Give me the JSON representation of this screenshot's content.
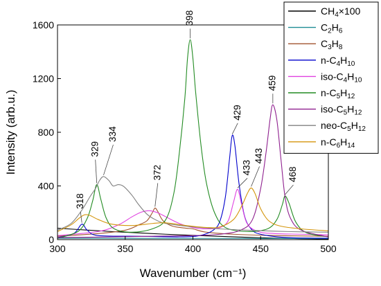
{
  "chart_data": {
    "type": "line",
    "xlabel": "Wavenumber (cm⁻¹)",
    "ylabel": "Intensity (arb.u.)",
    "xlim": [
      300,
      500
    ],
    "ylim": [
      0,
      1600
    ],
    "x_ticks": [
      300,
      350,
      400,
      450,
      500
    ],
    "y_ticks": [
      0,
      400,
      800,
      1200,
      1600
    ],
    "grid": false,
    "legend_position": "top-right",
    "series": [
      {
        "name": "CH4×100",
        "color": "#000000",
        "points": [
          [
            300,
            85
          ],
          [
            320,
            72
          ],
          [
            340,
            60
          ],
          [
            360,
            50
          ],
          [
            380,
            40
          ],
          [
            400,
            32
          ],
          [
            420,
            24
          ],
          [
            440,
            17
          ],
          [
            460,
            11
          ],
          [
            480,
            7
          ],
          [
            500,
            4
          ]
        ]
      },
      {
        "name": "C2H6",
        "color": "#1c8c94",
        "points": [
          [
            300,
            10
          ],
          [
            340,
            10
          ],
          [
            380,
            9
          ],
          [
            420,
            9
          ],
          [
            460,
            8
          ],
          [
            500,
            8
          ]
        ]
      },
      {
        "name": "C3H8",
        "color": "#a0522d",
        "points": [
          [
            300,
            25
          ],
          [
            330,
            45
          ],
          [
            350,
            70
          ],
          [
            360,
            110
          ],
          [
            366,
            140
          ],
          [
            370,
            200
          ],
          [
            372,
            235
          ],
          [
            374,
            210
          ],
          [
            378,
            140
          ],
          [
            385,
            100
          ],
          [
            395,
            85
          ],
          [
            400,
            80
          ],
          [
            410,
            55
          ],
          [
            430,
            40
          ],
          [
            460,
            30
          ],
          [
            500,
            25
          ]
        ]
      },
      {
        "name": "n-C4H10",
        "color": "#0000cc",
        "points": [
          [
            300,
            15
          ],
          [
            312,
            45
          ],
          [
            318,
            115
          ],
          [
            322,
            70
          ],
          [
            330,
            30
          ],
          [
            360,
            25
          ],
          [
            390,
            20
          ],
          [
            405,
            30
          ],
          [
            415,
            70
          ],
          [
            420,
            140
          ],
          [
            424,
            320
          ],
          [
            427,
            600
          ],
          [
            429,
            775
          ],
          [
            431,
            700
          ],
          [
            434,
            420
          ],
          [
            438,
            180
          ],
          [
            443,
            80
          ],
          [
            450,
            40
          ],
          [
            470,
            15
          ],
          [
            500,
            10
          ]
        ]
      },
      {
        "name": "iso-C4H10",
        "color": "#e040e0",
        "points": [
          [
            300,
            30
          ],
          [
            330,
            60
          ],
          [
            345,
            110
          ],
          [
            355,
            170
          ],
          [
            362,
            205
          ],
          [
            368,
            215
          ],
          [
            374,
            200
          ],
          [
            380,
            170
          ],
          [
            390,
            120
          ],
          [
            400,
            90
          ],
          [
            410,
            80
          ],
          [
            420,
            90
          ],
          [
            426,
            140
          ],
          [
            430,
            280
          ],
          [
            433,
            375
          ],
          [
            436,
            260
          ],
          [
            440,
            120
          ],
          [
            448,
            60
          ],
          [
            460,
            45
          ],
          [
            480,
            40
          ],
          [
            500,
            35
          ]
        ]
      },
      {
        "name": "n-C5H12",
        "color": "#228b22",
        "points": [
          [
            300,
            10
          ],
          [
            315,
            60
          ],
          [
            322,
            160
          ],
          [
            326,
            290
          ],
          [
            329,
            410
          ],
          [
            332,
            300
          ],
          [
            336,
            160
          ],
          [
            342,
            80
          ],
          [
            355,
            55
          ],
          [
            370,
            80
          ],
          [
            380,
            150
          ],
          [
            386,
            350
          ],
          [
            390,
            650
          ],
          [
            394,
            1050
          ],
          [
            396,
            1350
          ],
          [
            398,
            1490
          ],
          [
            400,
            1350
          ],
          [
            402,
            1100
          ],
          [
            406,
            700
          ],
          [
            410,
            420
          ],
          [
            416,
            200
          ],
          [
            424,
            90
          ],
          [
            440,
            60
          ],
          [
            455,
            80
          ],
          [
            462,
            150
          ],
          [
            466,
            260
          ],
          [
            468,
            325
          ],
          [
            471,
            270
          ],
          [
            476,
            130
          ],
          [
            484,
            50
          ],
          [
            500,
            20
          ]
        ]
      },
      {
        "name": "iso-C5H12",
        "color": "#8e1f8e",
        "points": [
          [
            300,
            15
          ],
          [
            340,
            20
          ],
          [
            370,
            25
          ],
          [
            400,
            30
          ],
          [
            420,
            40
          ],
          [
            435,
            70
          ],
          [
            444,
            150
          ],
          [
            450,
            380
          ],
          [
            454,
            650
          ],
          [
            457,
            900
          ],
          [
            459,
            1005
          ],
          [
            462,
            890
          ],
          [
            465,
            600
          ],
          [
            468,
            320
          ],
          [
            472,
            160
          ],
          [
            480,
            70
          ],
          [
            500,
            20
          ]
        ]
      },
      {
        "name": "neo-C5H12",
        "color": "#808080",
        "points": [
          [
            300,
            70
          ],
          [
            310,
            120
          ],
          [
            318,
            220
          ],
          [
            324,
            320
          ],
          [
            328,
            380
          ],
          [
            331,
            440
          ],
          [
            334,
            470
          ],
          [
            338,
            440
          ],
          [
            341,
            400
          ],
          [
            345,
            410
          ],
          [
            349,
            395
          ],
          [
            355,
            330
          ],
          [
            360,
            260
          ],
          [
            366,
            190
          ],
          [
            372,
            150
          ],
          [
            380,
            120
          ],
          [
            400,
            95
          ],
          [
            420,
            80
          ],
          [
            440,
            70
          ],
          [
            470,
            60
          ],
          [
            500,
            55
          ]
        ]
      },
      {
        "name": "n-C6H14",
        "color": "#d4950c",
        "points": [
          [
            300,
            60
          ],
          [
            310,
            110
          ],
          [
            316,
            160
          ],
          [
            320,
            185
          ],
          [
            324,
            180
          ],
          [
            330,
            150
          ],
          [
            340,
            115
          ],
          [
            355,
            105
          ],
          [
            370,
            120
          ],
          [
            380,
            125
          ],
          [
            395,
            105
          ],
          [
            410,
            90
          ],
          [
            420,
            95
          ],
          [
            430,
            150
          ],
          [
            436,
            250
          ],
          [
            440,
            340
          ],
          [
            443,
            385
          ],
          [
            446,
            340
          ],
          [
            450,
            230
          ],
          [
            456,
            140
          ],
          [
            465,
            100
          ],
          [
            480,
            80
          ],
          [
            500,
            65
          ]
        ]
      }
    ],
    "annotations": [
      {
        "text": "318",
        "x": 318,
        "y": 115,
        "color": "#000000"
      },
      {
        "text": "329",
        "x": 329,
        "y": 410,
        "color": "#000000"
      },
      {
        "text": "334",
        "x": 334,
        "y": 470,
        "color": "#000000"
      },
      {
        "text": "372",
        "x": 372,
        "y": 235,
        "color": "#000000"
      },
      {
        "text": "398",
        "x": 398,
        "y": 1490,
        "color": "#000000"
      },
      {
        "text": "429",
        "x": 429,
        "y": 775,
        "color": "#000000"
      },
      {
        "text": "433",
        "x": 433,
        "y": 375,
        "color": "#000000"
      },
      {
        "text": "443",
        "x": 443,
        "y": 385,
        "color": "#000000"
      },
      {
        "text": "459",
        "x": 459,
        "y": 1005,
        "color": "#000000"
      },
      {
        "text": "468",
        "x": 468,
        "y": 325,
        "color": "#000000"
      }
    ]
  },
  "legend": {
    "entries": [
      {
        "base": "CH",
        "sub1": "4",
        "mid": "×100",
        "sub2": "",
        "color": "#000000"
      },
      {
        "base": "C",
        "sub1": "2",
        "mid": "H",
        "sub2": "6",
        "color": "#1c8c94"
      },
      {
        "base": "C",
        "sub1": "3",
        "mid": "H",
        "sub2": "8",
        "color": "#a0522d"
      },
      {
        "base": "n-C",
        "sub1": "4",
        "mid": "H",
        "sub2": "10",
        "color": "#0000cc"
      },
      {
        "base": "iso-C",
        "sub1": "4",
        "mid": "H",
        "sub2": "10",
        "color": "#e040e0"
      },
      {
        "base": "n-C",
        "sub1": "5",
        "mid": "H",
        "sub2": "12",
        "color": "#228b22"
      },
      {
        "base": "iso-C",
        "sub1": "5",
        "mid": "H",
        "sub2": "12",
        "color": "#8e1f8e"
      },
      {
        "base": "neo-C",
        "sub1": "5",
        "mid": "H",
        "sub2": "12",
        "color": "#808080"
      },
      {
        "base": "n-C",
        "sub1": "6",
        "mid": "H",
        "sub2": "14",
        "color": "#d4950c"
      }
    ]
  }
}
